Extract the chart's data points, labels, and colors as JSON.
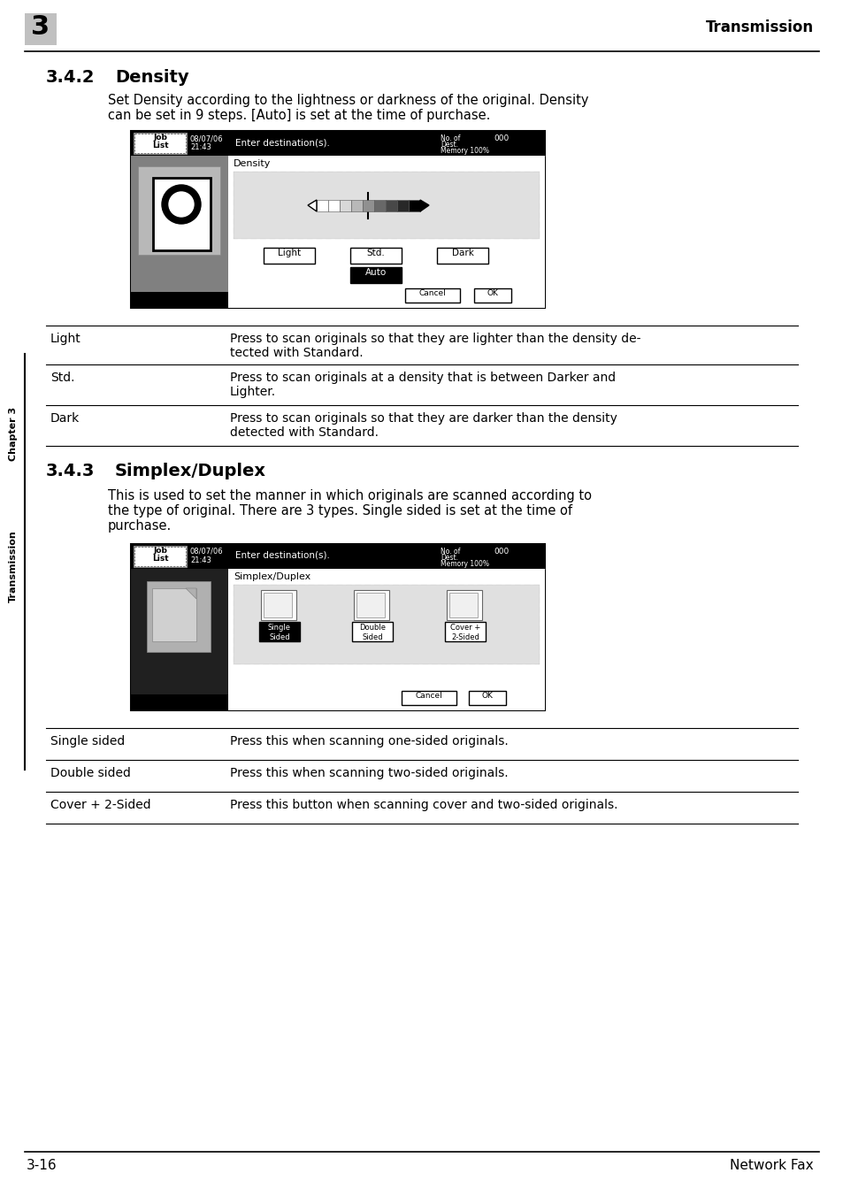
{
  "page_bg": "#ffffff",
  "header_chapter_num": "3",
  "header_chapter_bg": "#b0b0b0",
  "header_title": "Transmission",
  "footer_left": "3-16",
  "footer_right": "Network Fax",
  "left_sidebar_text": "Transmission",
  "left_sidebar_chapter": "Chapter 3",
  "section1_num": "3.4.2",
  "section1_title": "Density",
  "section1_body_line1": "Set Density according to the lightness or darkness of the original. Density",
  "section1_body_line2": "can be set in 9 steps. [Auto] is set at the time of purchase.",
  "section2_num": "3.4.3",
  "section2_title": "Simplex/Duplex",
  "section2_body_line1": "This is used to set the manner in which originals are scanned according to",
  "section2_body_line2": "the type of original. There are 3 types. Single sided is set at the time of",
  "section2_body_line3": "purchase.",
  "table1_rows": [
    [
      "Light",
      "Press to scan originals so that they are lighter than the density de-",
      "tected with Standard."
    ],
    [
      "Std.",
      "Press to scan originals at a density that is between Darker and",
      "Lighter."
    ],
    [
      "Dark",
      "Press to scan originals so that they are darker than the density",
      "detected with Standard."
    ]
  ],
  "table2_rows": [
    [
      "Single sided",
      "Press this when scanning one-sided originals."
    ],
    [
      "Double sided",
      "Press this when scanning two-sided originals."
    ],
    [
      "Cover + 2-Sided",
      "Press this button when scanning cover and two-sided originals."
    ]
  ]
}
